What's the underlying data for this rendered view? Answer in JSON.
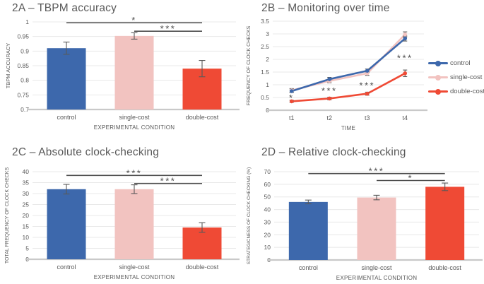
{
  "colors": {
    "control": "#3D68AC",
    "single_cost": "#F2C3C0",
    "double_cost": "#EF4A35",
    "title_text": "#595959",
    "axis_text": "#595959",
    "gridline": "#E8E8E8",
    "axis_line": "#C9C9C9",
    "significance": "#4D4D4D",
    "error_bar": "#595959"
  },
  "chart_data": [
    {
      "id": "2A",
      "type": "bar",
      "title": "2A – TBPM accuracy",
      "xlabel": "EXPERIMENTAL CONDITION",
      "ylabel": "TBPM ACCURACY",
      "categories": [
        "control",
        "single-cost",
        "double-cost"
      ],
      "color_keys": [
        "control",
        "single_cost",
        "double_cost"
      ],
      "values": [
        0.91,
        0.952,
        0.84
      ],
      "errors": [
        0.021,
        0.011,
        0.028
      ],
      "ylim": [
        0.7,
        1.0
      ],
      "yticks": [
        "0.7",
        "0.75",
        "0.8",
        "0.85",
        "0.9",
        "0.95",
        "1"
      ],
      "grid": true,
      "significance": [
        {
          "from": 0,
          "to": 2,
          "y": 0.997,
          "label": "*"
        },
        {
          "from": 1,
          "to": 2,
          "y": 0.968,
          "label": "***"
        }
      ]
    },
    {
      "id": "2B",
      "type": "line",
      "title": "2B – Monitoring over time",
      "xlabel": "TIME",
      "ylabel": "FREQUENCY OF CLOCK CHECKS",
      "categories": [
        "t1",
        "t2",
        "t3",
        "t4"
      ],
      "ylim": [
        0,
        3.5
      ],
      "yticks": [
        "0",
        "0.5",
        "1",
        "1.5",
        "2",
        "2.5",
        "3",
        "3.5"
      ],
      "grid": true,
      "legend_position": "right",
      "series": [
        {
          "name": "control",
          "color_key": "control",
          "values": [
            0.75,
            1.22,
            1.55,
            2.82
          ],
          "errors": [
            0.05,
            0.07,
            0.07,
            0.1
          ]
        },
        {
          "name": "single-cost",
          "color_key": "single_cost",
          "values": [
            0.78,
            1.15,
            1.45,
            2.98
          ],
          "errors": [
            0.07,
            0.07,
            0.08,
            0.1
          ]
        },
        {
          "name": "double-cost",
          "color_key": "double_cost",
          "values": [
            0.35,
            0.46,
            0.65,
            1.45
          ],
          "errors": [
            0.04,
            0.05,
            0.06,
            0.13
          ]
        }
      ],
      "annotations": [
        {
          "x": 0,
          "y": 0.53,
          "label": "*"
        },
        {
          "x": 1,
          "y": 0.8,
          "label": "***"
        },
        {
          "x": 2,
          "y": 1.02,
          "label": "***"
        },
        {
          "x": 3,
          "y": 2.1,
          "label": "***"
        }
      ]
    },
    {
      "id": "2C",
      "type": "bar",
      "title": "2C – Absolute clock-checking",
      "xlabel": "EXPERIMENTAL CONDITION",
      "ylabel": "TOTAL FREQUENCY OF CLOCK CHECKS",
      "categories": [
        "control",
        "single-cost",
        "double-cost"
      ],
      "color_keys": [
        "control",
        "single_cost",
        "double_cost"
      ],
      "values": [
        32,
        32,
        14.5
      ],
      "errors": [
        2.2,
        2.0,
        2.2
      ],
      "ylim": [
        0,
        40
      ],
      "yticks": [
        "0",
        "5",
        "10",
        "15",
        "20",
        "25",
        "30",
        "35",
        "40"
      ],
      "grid": true,
      "significance": [
        {
          "from": 0,
          "to": 2,
          "y": 38.3,
          "label": "***"
        },
        {
          "from": 1,
          "to": 2,
          "y": 34.6,
          "label": "***"
        }
      ]
    },
    {
      "id": "2D",
      "type": "bar",
      "title": "2D – Relative clock-checking",
      "xlabel": "EXPERIMENTAL CONDITION",
      "ylabel": "STRATEGICNESS OF CLOCK CHECKING (%)",
      "categories": [
        "control",
        "single-cost",
        "double-cost"
      ],
      "color_keys": [
        "control",
        "single_cost",
        "double_cost"
      ],
      "values": [
        46,
        49.5,
        58
      ],
      "errors": [
        1.5,
        1.8,
        3.0
      ],
      "ylim": [
        0,
        70
      ],
      "yticks": [
        "0",
        "10",
        "20",
        "30",
        "40",
        "50",
        "60",
        "70"
      ],
      "grid": true,
      "significance": [
        {
          "from": 0,
          "to": 2,
          "y": 68.5,
          "label": "***"
        },
        {
          "from": 1,
          "to": 2,
          "y": 63,
          "label": "*"
        }
      ]
    }
  ]
}
